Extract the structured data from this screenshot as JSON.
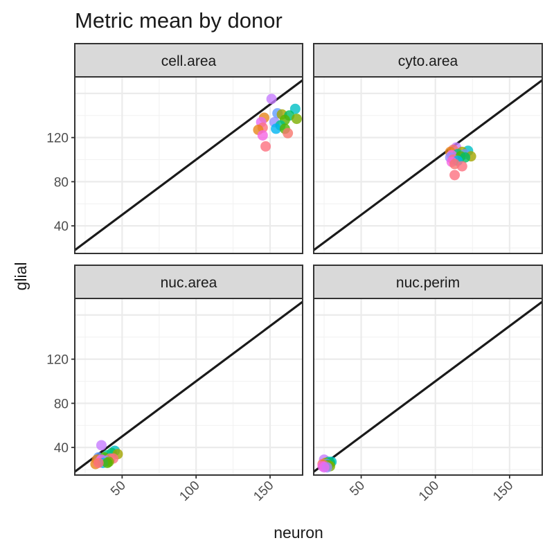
{
  "chart_data": {
    "type": "scatter",
    "title": "Metric mean by donor",
    "xlabel": "neuron",
    "ylabel": "glial",
    "xlim": [
      18,
      172
    ],
    "ylim": [
      15,
      175
    ],
    "x_ticks": [
      50,
      100,
      150
    ],
    "y_ticks": [
      40,
      80,
      120
    ],
    "grid": true,
    "legend": "none",
    "reference_line": {
      "slope": 1,
      "intercept": 0
    },
    "palette": [
      "#E7861B",
      "#F8766D",
      "#FC717F",
      "#F564E3",
      "#C77CFF",
      "#E76BF3",
      "#00BFC4",
      "#00B4F0",
      "#00A9FF",
      "#619CFF",
      "#00C08B",
      "#00BE67",
      "#7CAE00",
      "#A3A500",
      "#53B400",
      "#9590FF"
    ],
    "panels": [
      {
        "label": "cell.area",
        "points": [
          {
            "x": 151,
            "y": 155,
            "c": 4
          },
          {
            "x": 167,
            "y": 146,
            "c": 6
          },
          {
            "x": 155,
            "y": 142,
            "c": 9
          },
          {
            "x": 158,
            "y": 141,
            "c": 13
          },
          {
            "x": 163,
            "y": 140,
            "c": 11
          },
          {
            "x": 146,
            "y": 138,
            "c": 0
          },
          {
            "x": 168,
            "y": 137,
            "c": 12
          },
          {
            "x": 160,
            "y": 136,
            "c": 14
          },
          {
            "x": 144,
            "y": 134,
            "c": 5
          },
          {
            "x": 153,
            "y": 134,
            "c": 15
          },
          {
            "x": 157,
            "y": 131,
            "c": 10
          },
          {
            "x": 145,
            "y": 129,
            "c": 2
          },
          {
            "x": 154,
            "y": 128,
            "c": 7
          },
          {
            "x": 160,
            "y": 128,
            "c": 14
          },
          {
            "x": 142,
            "y": 127,
            "c": 0
          },
          {
            "x": 162,
            "y": 124,
            "c": 1
          },
          {
            "x": 145,
            "y": 122,
            "c": 3
          },
          {
            "x": 147,
            "y": 112,
            "c": 2
          }
        ]
      },
      {
        "label": "cyto.area",
        "points": [
          {
            "x": 114,
            "y": 111,
            "c": 4
          },
          {
            "x": 112,
            "y": 109,
            "c": 1
          },
          {
            "x": 110,
            "y": 107,
            "c": 0
          },
          {
            "x": 122,
            "y": 108,
            "c": 6
          },
          {
            "x": 118,
            "y": 107,
            "c": 13
          },
          {
            "x": 115,
            "y": 105,
            "c": 10
          },
          {
            "x": 120,
            "y": 105,
            "c": 9
          },
          {
            "x": 111,
            "y": 104,
            "c": 5
          },
          {
            "x": 117,
            "y": 103,
            "c": 14
          },
          {
            "x": 124,
            "y": 103,
            "c": 13
          },
          {
            "x": 110,
            "y": 102,
            "c": 15
          },
          {
            "x": 120,
            "y": 102,
            "c": 11
          },
          {
            "x": 112,
            "y": 100,
            "c": 2
          },
          {
            "x": 115,
            "y": 99,
            "c": 7
          },
          {
            "x": 111,
            "y": 98,
            "c": 3
          },
          {
            "x": 113,
            "y": 96,
            "c": 1
          },
          {
            "x": 118,
            "y": 94,
            "c": 2
          },
          {
            "x": 113,
            "y": 86,
            "c": 2
          }
        ]
      },
      {
        "label": "nuc.area",
        "points": [
          {
            "x": 36,
            "y": 42,
            "c": 4
          },
          {
            "x": 45,
            "y": 37,
            "c": 6
          },
          {
            "x": 43,
            "y": 35,
            "c": 11
          },
          {
            "x": 47,
            "y": 34,
            "c": 13
          },
          {
            "x": 40,
            "y": 33,
            "c": 10
          },
          {
            "x": 34,
            "y": 31,
            "c": 9
          },
          {
            "x": 38,
            "y": 31,
            "c": 14
          },
          {
            "x": 42,
            "y": 30,
            "c": 1
          },
          {
            "x": 44,
            "y": 30,
            "c": 2
          },
          {
            "x": 33,
            "y": 29,
            "c": 0
          },
          {
            "x": 36,
            "y": 29,
            "c": 5
          },
          {
            "x": 39,
            "y": 28,
            "c": 15
          },
          {
            "x": 35,
            "y": 27,
            "c": 3
          },
          {
            "x": 41,
            "y": 27,
            "c": 12
          },
          {
            "x": 37,
            "y": 26,
            "c": 7
          },
          {
            "x": 32,
            "y": 25,
            "c": 0
          },
          {
            "x": 40,
            "y": 26,
            "c": 14
          },
          {
            "x": 34,
            "y": 26,
            "c": 2
          }
        ]
      },
      {
        "label": "nuc.perim",
        "points": [
          {
            "x": 25,
            "y": 29,
            "c": 4
          },
          {
            "x": 28,
            "y": 27,
            "c": 10
          },
          {
            "x": 30,
            "y": 27,
            "c": 6
          },
          {
            "x": 26,
            "y": 26,
            "c": 13
          },
          {
            "x": 29,
            "y": 26,
            "c": 11
          },
          {
            "x": 24,
            "y": 25,
            "c": 1
          },
          {
            "x": 27,
            "y": 25,
            "c": 9
          },
          {
            "x": 25,
            "y": 24,
            "c": 0
          },
          {
            "x": 28,
            "y": 24,
            "c": 14
          },
          {
            "x": 26,
            "y": 23,
            "c": 2
          },
          {
            "x": 24,
            "y": 23,
            "c": 3
          },
          {
            "x": 29,
            "y": 23,
            "c": 12
          },
          {
            "x": 27,
            "y": 22,
            "c": 15
          },
          {
            "x": 25,
            "y": 22,
            "c": 5
          }
        ]
      }
    ]
  }
}
